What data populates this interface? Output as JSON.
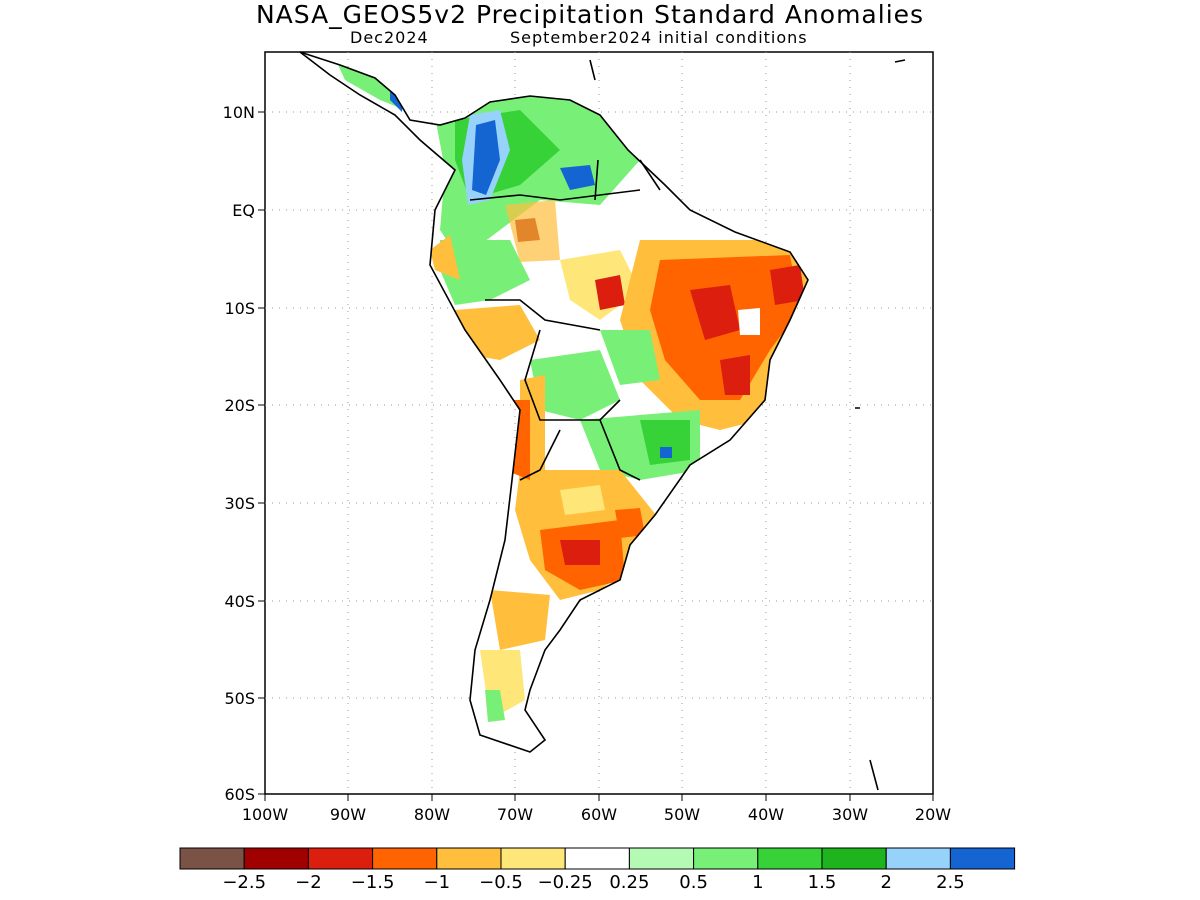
{
  "title": "NASA_GEOS5v2 Precipitation Standard Anomalies",
  "subtitle_left": "Dec2024",
  "subtitle_right": "September2024 initial conditions",
  "lat_labels": [
    "10N",
    "EQ",
    "10S",
    "20S",
    "30S",
    "40S",
    "50S",
    "60S"
  ],
  "lon_labels": [
    "100W",
    "90W",
    "80W",
    "70W",
    "60W",
    "50W",
    "40W",
    "30W",
    "20W"
  ],
  "colorbar": {
    "colors": [
      "#7a5246",
      "#a00000",
      "#dc1e0f",
      "#ff6400",
      "#ffbe3c",
      "#ffe678",
      "#ffffff",
      "#b4fab4",
      "#78f078",
      "#37d237",
      "#1eb41e",
      "#96d2fa",
      "#1464d2"
    ],
    "labels": [
      "−2.5",
      "−2",
      "−1.5",
      "−1",
      "−0.5",
      "−0.25",
      "0.25",
      "0.5",
      "1",
      "1.5",
      "2",
      "2.5"
    ]
  },
  "map_data": {
    "region": "South America",
    "lon_range": [
      -100,
      -20
    ],
    "lat_range": [
      -60,
      15
    ],
    "grid": "dotted"
  }
}
